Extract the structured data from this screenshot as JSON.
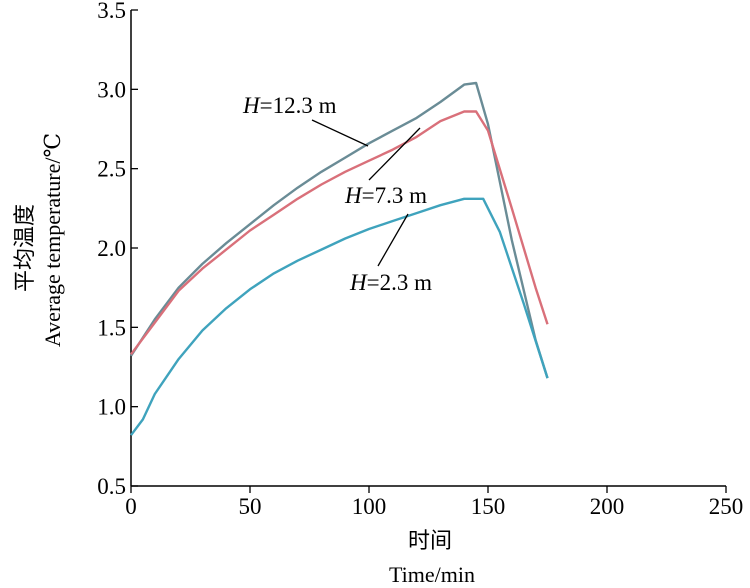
{
  "chart_data": {
    "type": "line",
    "title": "",
    "xlabel_cn": "时间",
    "xlabel": "Time/min",
    "ylabel_cn": "平均温度",
    "ylabel": "Average temperature/℃",
    "xlim": [
      0,
      250
    ],
    "ylim": [
      0.5,
      3.5
    ],
    "xticks": [
      0,
      50,
      100,
      150,
      200,
      250
    ],
    "yticks": [
      0.5,
      1.0,
      1.5,
      2.0,
      2.5,
      3.0,
      3.5
    ],
    "xtick_labels": [
      "0",
      "50",
      "100",
      "150",
      "200",
      "250"
    ],
    "ytick_labels": [
      "0.5",
      "1.0",
      "1.5",
      "2.0",
      "2.5",
      "3.0",
      "3.5"
    ],
    "grid": false,
    "legend": "none",
    "series": [
      {
        "label_var": "H",
        "label_rest": "=12.3 m",
        "color": "#6a8c96",
        "x": [
          0,
          10,
          20,
          30,
          40,
          50,
          60,
          70,
          80,
          90,
          100,
          110,
          120,
          130,
          140,
          145,
          150,
          160,
          170,
          175
        ],
        "y": [
          1.32,
          1.55,
          1.75,
          1.9,
          2.03,
          2.15,
          2.27,
          2.38,
          2.48,
          2.57,
          2.66,
          2.74,
          2.82,
          2.92,
          3.03,
          3.04,
          2.78,
          2.05,
          1.42,
          1.18
        ]
      },
      {
        "label_var": "H",
        "label_rest": "=7.3 m",
        "color": "#d9707a",
        "x": [
          0,
          10,
          20,
          30,
          40,
          50,
          60,
          70,
          80,
          90,
          100,
          110,
          120,
          130,
          140,
          145,
          150,
          160,
          170,
          175
        ],
        "y": [
          1.33,
          1.53,
          1.73,
          1.87,
          1.99,
          2.11,
          2.21,
          2.31,
          2.4,
          2.48,
          2.55,
          2.62,
          2.7,
          2.8,
          2.86,
          2.86,
          2.74,
          2.25,
          1.75,
          1.52
        ]
      },
      {
        "label_var": "H",
        "label_rest": "=2.3 m",
        "color": "#3fa3bd",
        "x": [
          0,
          5,
          10,
          20,
          30,
          40,
          50,
          60,
          70,
          80,
          90,
          100,
          110,
          120,
          130,
          140,
          148,
          155,
          165,
          175
        ],
        "y": [
          0.82,
          0.92,
          1.08,
          1.3,
          1.48,
          1.62,
          1.74,
          1.84,
          1.92,
          1.99,
          2.06,
          2.12,
          2.17,
          2.22,
          2.27,
          2.31,
          2.31,
          2.1,
          1.65,
          1.18
        ]
      }
    ]
  }
}
